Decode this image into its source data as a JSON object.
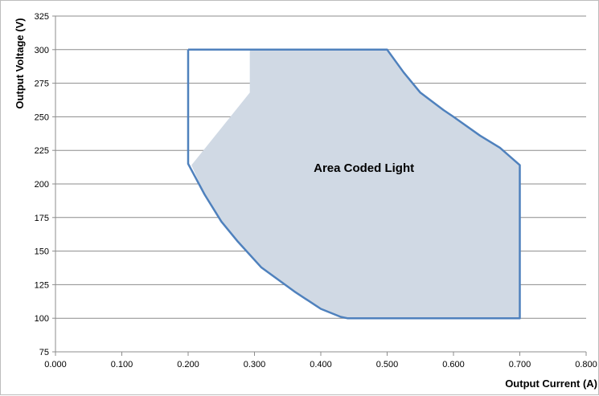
{
  "chart_data": {
    "type": "area",
    "xlabel": "Output Current (A)",
    "ylabel": "Output Voltage (V)",
    "xlim": [
      0,
      0.8
    ],
    "ylim": [
      75,
      325
    ],
    "x_ticks": [
      "0.000",
      "0.100",
      "0.200",
      "0.300",
      "0.400",
      "0.500",
      "0.600",
      "0.700",
      "0.800"
    ],
    "y_ticks": [
      "75",
      "100",
      "125",
      "150",
      "175",
      "200",
      "225",
      "250",
      "275",
      "300",
      "325"
    ],
    "grid": "horizontal",
    "annotations": [
      {
        "text": "Area Coded Light",
        "x": 0.465,
        "y": 212
      }
    ],
    "series": [
      {
        "role": "outline",
        "color": "#4f81bd",
        "points": [
          [
            0.2,
            300
          ],
          [
            0.5,
            300
          ],
          [
            0.525,
            283
          ],
          [
            0.55,
            268
          ],
          [
            0.585,
            255
          ],
          [
            0.6,
            250
          ],
          [
            0.64,
            236
          ],
          [
            0.67,
            227
          ],
          [
            0.7,
            214
          ],
          [
            0.7,
            100
          ],
          [
            0.44,
            100
          ],
          [
            0.43,
            101
          ],
          [
            0.4,
            107
          ],
          [
            0.36,
            120
          ],
          [
            0.31,
            138
          ],
          [
            0.275,
            157
          ],
          [
            0.25,
            172
          ],
          [
            0.225,
            192
          ],
          [
            0.2,
            215
          ],
          [
            0.2,
            300
          ]
        ]
      },
      {
        "role": "shaded-area",
        "color": "#d0d9e4",
        "points": [
          [
            0.293,
            300
          ],
          [
            0.5,
            300
          ],
          [
            0.525,
            283
          ],
          [
            0.55,
            268
          ],
          [
            0.585,
            255
          ],
          [
            0.6,
            250
          ],
          [
            0.64,
            236
          ],
          [
            0.67,
            227
          ],
          [
            0.7,
            214
          ],
          [
            0.7,
            100
          ],
          [
            0.44,
            100
          ],
          [
            0.43,
            101
          ],
          [
            0.4,
            107
          ],
          [
            0.36,
            120
          ],
          [
            0.31,
            138
          ],
          [
            0.275,
            157
          ],
          [
            0.25,
            172
          ],
          [
            0.225,
            192
          ],
          [
            0.205,
            214
          ],
          [
            0.293,
            268
          ]
        ]
      }
    ]
  }
}
